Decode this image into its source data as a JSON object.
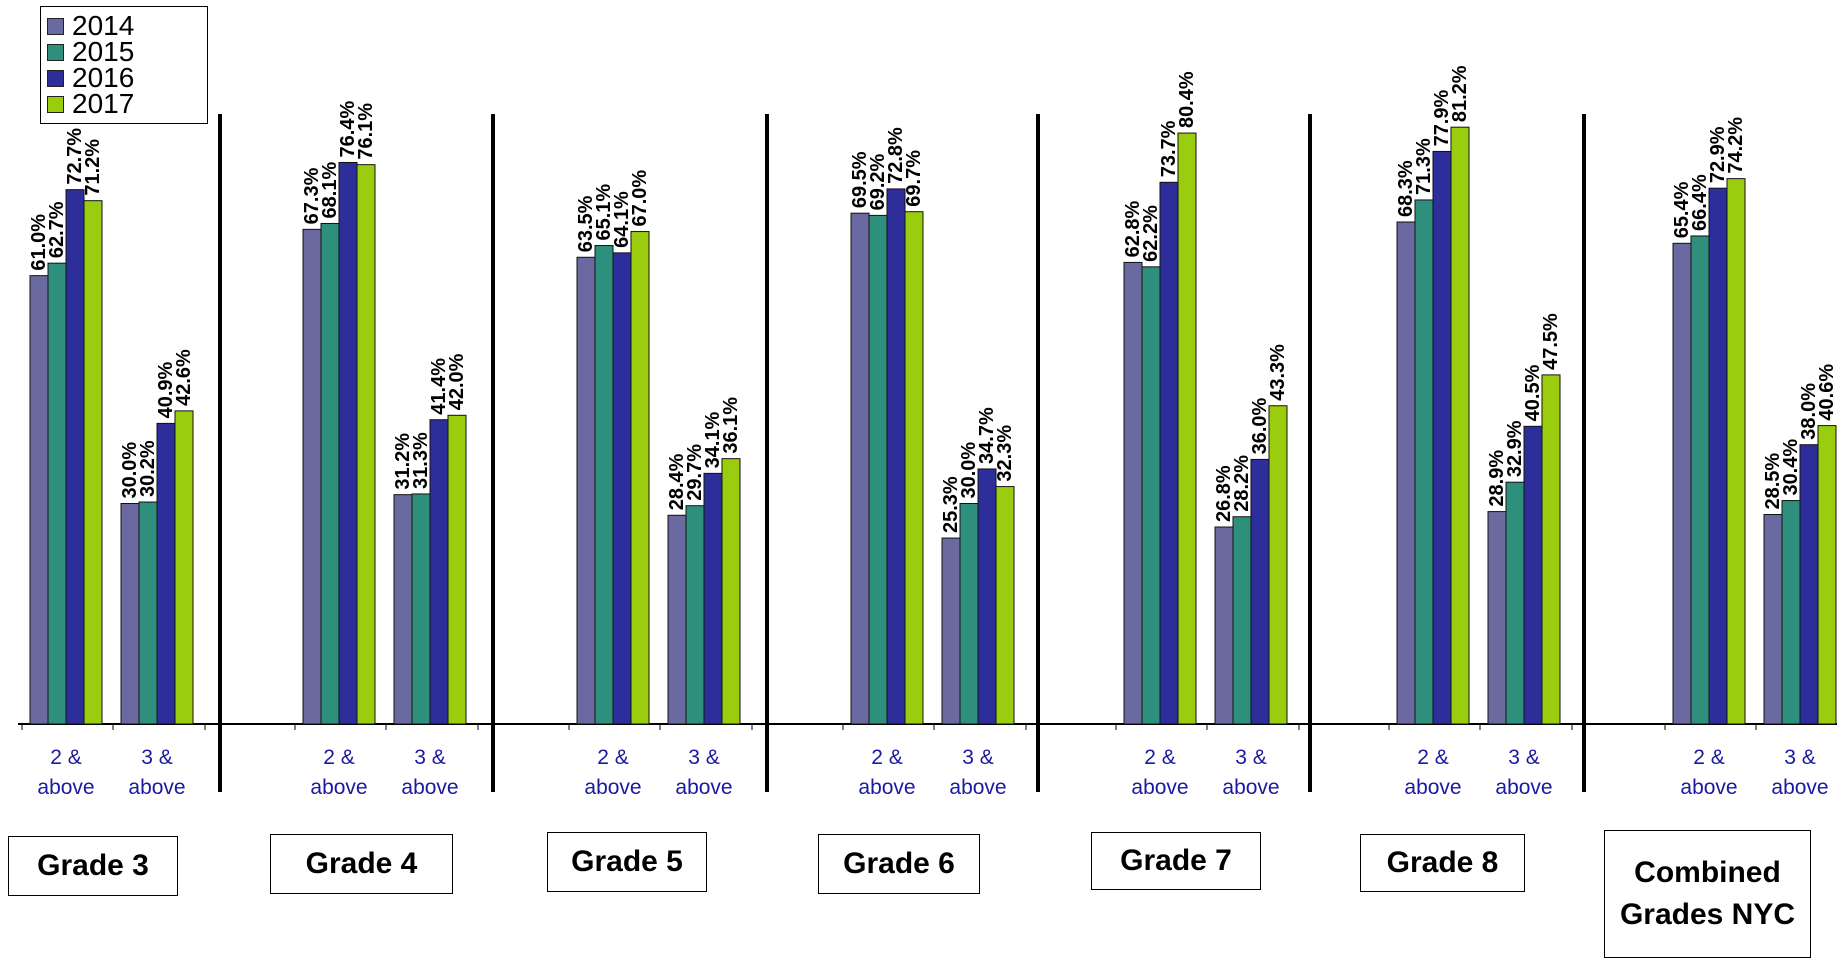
{
  "legend": [
    {
      "label": "2014",
      "color": "#6a6aa0"
    },
    {
      "label": "2015",
      "color": "#2e8f7d"
    },
    {
      "label": "2016",
      "color": "#2e2e9a"
    },
    {
      "label": "2017",
      "color": "#9acd0e"
    }
  ],
  "category_labels": [
    [
      "2 &",
      "above"
    ],
    [
      "3 &",
      "above"
    ]
  ],
  "grade_labels": [
    "Grade 3",
    "Grade 4",
    "Grade 5",
    "Grade 6",
    "Grade 7",
    "Grade 8",
    "Combined Grades NYC"
  ],
  "chart_data": {
    "type": "bar",
    "ylim": [
      0,
      100
    ],
    "series_names": [
      "2014",
      "2015",
      "2016",
      "2017"
    ],
    "groups": [
      {
        "grade": "Grade 3",
        "categories": [
          "2 & above",
          "3 & above"
        ],
        "values": [
          [
            61.0,
            62.7,
            72.7,
            71.2
          ],
          [
            30.0,
            30.2,
            40.9,
            42.6
          ]
        ],
        "labels": [
          [
            "61.0%",
            "62.7%",
            "72.7%",
            "71.2%"
          ],
          [
            "30.0%",
            "30.2%",
            "40.9%",
            "42.6%"
          ]
        ]
      },
      {
        "grade": "Grade 4",
        "categories": [
          "2 & above",
          "3 & above"
        ],
        "values": [
          [
            67.3,
            68.1,
            76.4,
            76.1
          ],
          [
            31.2,
            31.3,
            41.4,
            42.0
          ]
        ],
        "labels": [
          [
            "67.3%",
            "68.1%",
            "76.4%",
            "76.1%"
          ],
          [
            "31.2%",
            "31.3%",
            "41.4%",
            "42.0%"
          ]
        ]
      },
      {
        "grade": "Grade 5",
        "categories": [
          "2 & above",
          "3 & above"
        ],
        "values": [
          [
            63.5,
            65.1,
            64.1,
            67.0
          ],
          [
            28.4,
            29.7,
            34.1,
            36.1
          ]
        ],
        "labels": [
          [
            "63.5%",
            "65.1%",
            "64.1%",
            "67.0%"
          ],
          [
            "28.4%",
            "29.7%",
            "34.1%",
            "36.1%"
          ]
        ]
      },
      {
        "grade": "Grade 6",
        "categories": [
          "2 & above",
          "3 & above"
        ],
        "values": [
          [
            69.5,
            69.2,
            72.8,
            69.7
          ],
          [
            25.3,
            30.0,
            34.7,
            32.3
          ]
        ],
        "labels": [
          [
            "69.5%",
            "69.2%",
            "72.8%",
            "69.7%"
          ],
          [
            "25.3%",
            "30.0%",
            "34.7%",
            "32.3%"
          ]
        ]
      },
      {
        "grade": "Grade 7",
        "categories": [
          "2 & above",
          "3 & above"
        ],
        "values": [
          [
            62.8,
            62.2,
            73.7,
            80.4
          ],
          [
            26.8,
            28.2,
            36.0,
            43.3
          ]
        ],
        "labels": [
          [
            "62.8%",
            "62.2%",
            "73.7%",
            "80.4%"
          ],
          [
            "26.8%",
            "28.2%",
            "36.0%",
            "43.3%"
          ]
        ]
      },
      {
        "grade": "Grade 8",
        "categories": [
          "2 & above",
          "3 & above"
        ],
        "values": [
          [
            68.3,
            71.3,
            77.9,
            81.2
          ],
          [
            28.9,
            32.9,
            40.5,
            47.5
          ]
        ],
        "labels": [
          [
            "68.3%",
            "71.3%",
            "77.9%",
            "81.2%"
          ],
          [
            "28.9%",
            "32.9%",
            "40.5%",
            "47.5%"
          ]
        ]
      },
      {
        "grade": "Combined Grades NYC",
        "categories": [
          "2 & above",
          "3 & above"
        ],
        "values": [
          [
            65.4,
            66.4,
            72.9,
            74.2
          ],
          [
            28.5,
            30.4,
            38.0,
            40.6
          ]
        ],
        "labels": [
          [
            "65.4%",
            "66.4%",
            "72.9%",
            "74.2%"
          ],
          [
            "28.5%",
            "30.4%",
            "38.0%",
            "40.6%"
          ]
        ]
      }
    ]
  }
}
